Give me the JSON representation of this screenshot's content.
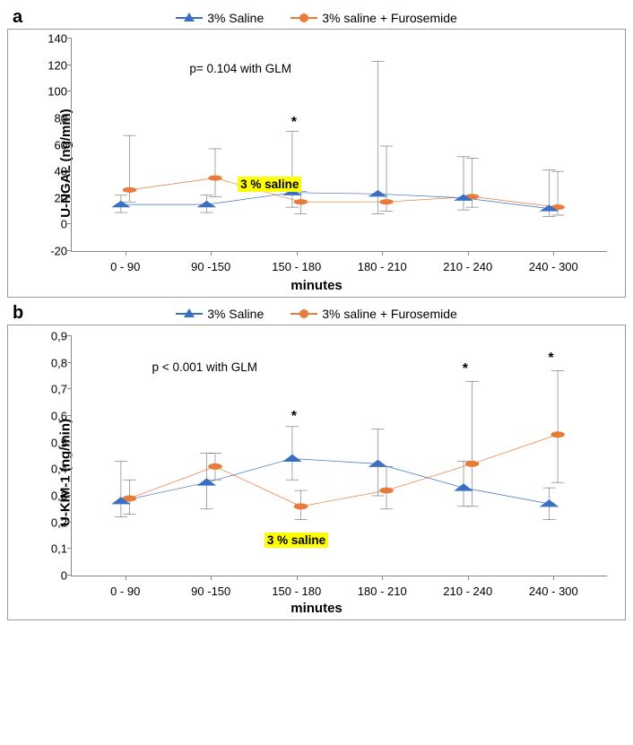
{
  "colors": {
    "saline": "#3a6fc4",
    "furo": "#e87a3a",
    "axis": "#888888",
    "error": "#000000",
    "bg": "#ffffff",
    "highlight": "#ffff00"
  },
  "legend": {
    "saline": "3% Saline",
    "furo": "3% saline + Furosemide"
  },
  "xaxis": {
    "label": "minutes",
    "categories": [
      "0 - 90",
      "90 -150",
      "150 - 180",
      "180 - 210",
      "210 - 240",
      "240 - 300"
    ]
  },
  "panel_a": {
    "label": "a",
    "ylabel": "U-NGAL (ng/min)",
    "ylim": [
      -20,
      140
    ],
    "yticks": [
      -20,
      0,
      20,
      40,
      60,
      80,
      100,
      120,
      140
    ],
    "series": {
      "saline": {
        "y": [
          15,
          15,
          24,
          23,
          20,
          12
        ],
        "err": [
          [
            6,
            7
          ],
          [
            6,
            7
          ],
          [
            11,
            46
          ],
          [
            15,
            100
          ],
          [
            9,
            31
          ],
          [
            6,
            29
          ]
        ]
      },
      "furo": {
        "y": [
          26,
          35,
          17,
          17,
          21,
          13
        ],
        "err": [
          [
            9,
            41
          ],
          [
            14,
            22
          ],
          [
            9,
            8
          ],
          [
            7,
            42
          ],
          [
            8,
            29
          ],
          [
            6,
            27
          ]
        ]
      }
    },
    "annotations": {
      "p_text": "p= 0.104 with GLM",
      "p_pos_pct": [
        22,
        11
      ],
      "highlight_text": "3 % saline",
      "highlight_pos_pct": [
        31,
        65
      ],
      "stars": [
        {
          "x_idx": 2,
          "y_val": 78
        }
      ]
    }
  },
  "panel_b": {
    "label": "b",
    "ylabel": "U-KIM-1 (ng/min)",
    "ylim": [
      0,
      0.9
    ],
    "yticks": [
      0,
      0.1,
      0.2,
      0.3,
      0.4,
      0.5,
      0.6,
      0.7,
      0.8,
      0.9
    ],
    "ytick_labels": [
      "0",
      "0,1",
      "0,2",
      "0,3",
      "0,4",
      "0,5",
      "0,6",
      "0,7",
      "0,8",
      "0,9"
    ],
    "series": {
      "saline": {
        "y": [
          0.28,
          0.35,
          0.44,
          0.42,
          0.33,
          0.27
        ],
        "err": [
          [
            0.06,
            0.15
          ],
          [
            0.1,
            0.11
          ],
          [
            0.08,
            0.12
          ],
          [
            0.12,
            0.13
          ],
          [
            0.07,
            0.1
          ],
          [
            0.06,
            0.06
          ]
        ]
      },
      "furo": {
        "y": [
          0.29,
          0.41,
          0.26,
          0.32,
          0.42,
          0.53
        ],
        "err": [
          [
            0.06,
            0.07
          ],
          [
            0.05,
            0.05
          ],
          [
            0.05,
            0.06
          ],
          [
            0.07,
            0.09
          ],
          [
            0.16,
            0.31
          ],
          [
            0.18,
            0.24
          ]
        ]
      }
    },
    "annotations": {
      "p_text": "p < 0.001 with GLM",
      "p_pos_pct": [
        15,
        10
      ],
      "highlight_text": "3 % saline",
      "highlight_pos_pct": [
        36,
        82
      ],
      "stars": [
        {
          "x_idx": 2,
          "y_val": 0.6
        },
        {
          "x_idx": 4,
          "y_val": 0.78
        },
        {
          "x_idx": 5,
          "y_val": 0.82
        }
      ]
    }
  }
}
